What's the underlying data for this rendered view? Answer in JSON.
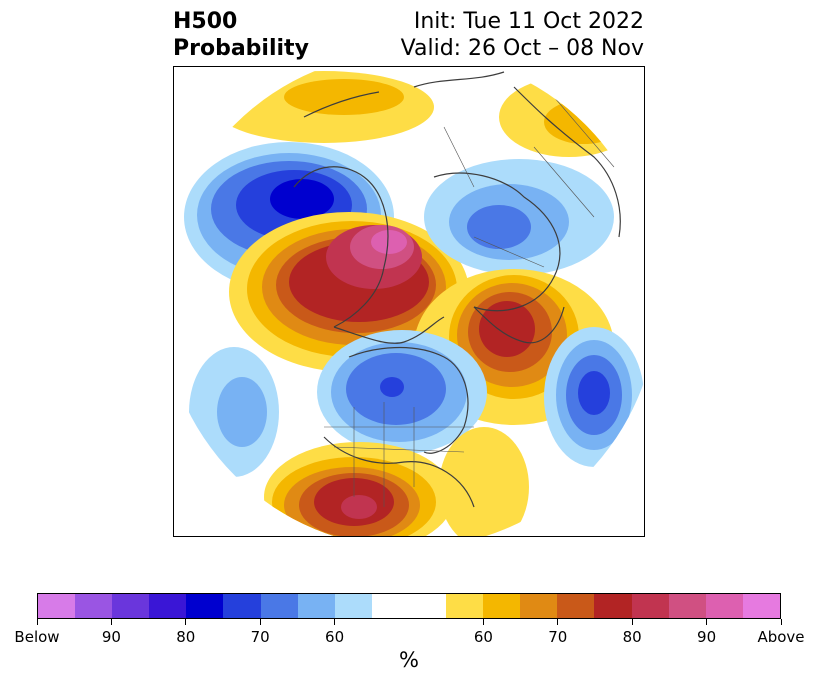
{
  "title": {
    "left_line1": "H500",
    "left_line2": "Probability",
    "right_line1": "Init: Tue 11 Oct 2022",
    "right_line2": "Valid: 26 Oct – 08 Nov"
  },
  "colorbar": {
    "colors": [
      "#d77be8",
      "#9a55e3",
      "#6a36dc",
      "#3a16d6",
      "#0000cf",
      "#2540dc",
      "#4a78e6",
      "#78b2f3",
      "#acdcfb",
      "#ffffff",
      "#ffffff",
      "#fedd46",
      "#f4b700",
      "#e08a14",
      "#c95919",
      "#b22424",
      "#c13450",
      "#d05082",
      "#dd60b0",
      "#e67ae0"
    ],
    "tick_labels": [
      "Below",
      "90",
      "80",
      "70",
      "60",
      "60",
      "70",
      "80",
      "90",
      "Above"
    ],
    "units_label": "%"
  },
  "map": {
    "description_colors": {
      "below_strong": "#0000cf",
      "below_weak": "#acdcfb",
      "above_weak": "#fedd46",
      "above_strong": "#b22424"
    },
    "anomalies": [
      {
        "name": "alaska-bering-trough",
        "sign": "below",
        "peak_category": "80"
      },
      {
        "name": "canada-arctic-ridge",
        "sign": "above",
        "peak_category": "90"
      },
      {
        "name": "north-atlantic-ridge",
        "sign": "above",
        "peak_category": "80"
      },
      {
        "name": "eastern-canada-trough",
        "sign": "below",
        "peak_category": "70"
      },
      {
        "name": "siberia-trough",
        "sign": "below",
        "peak_category": "60"
      },
      {
        "name": "northeast-pacific-trough",
        "sign": "below",
        "peak_category": "60"
      },
      {
        "name": "mid-atlantic-trough",
        "sign": "below",
        "peak_category": "80"
      },
      {
        "name": "southern-us-ridge",
        "sign": "above",
        "peak_category": "80"
      }
    ]
  }
}
